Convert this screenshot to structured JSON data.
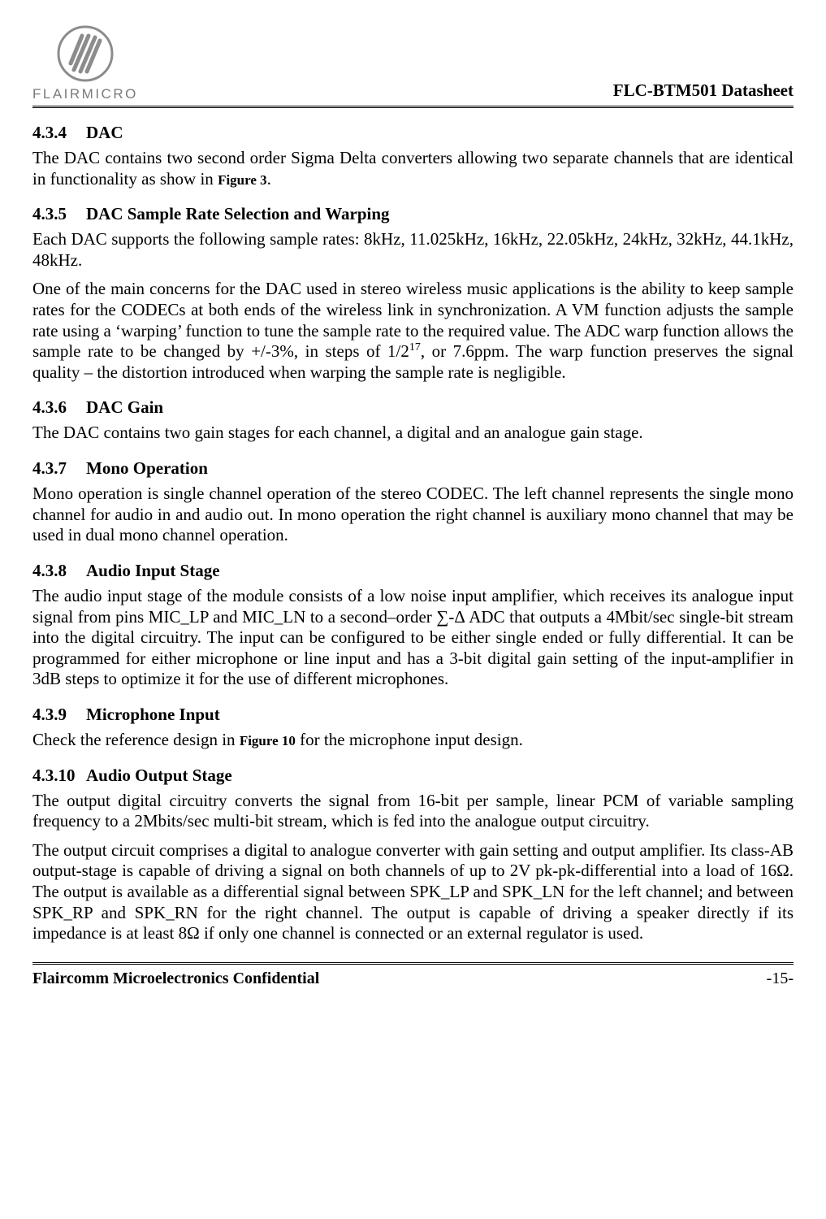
{
  "brand": {
    "name": "FLAIRMICRO",
    "logo_fill": "#8c8c8c",
    "logo_stroke": "#8c8c8c"
  },
  "doc_title": "FLC-BTM501 Datasheet",
  "sections": [
    {
      "num": "4.3.4",
      "title": "DAC",
      "paras": [
        {
          "pre": "The DAC contains two second order Sigma Delta converters allowing two separate channels that are identical in functionality as show in ",
          "fig": "Figure 3",
          "post": "."
        }
      ]
    },
    {
      "num": "4.3.5",
      "title": "DAC Sample Rate Selection and Warping",
      "paras": [
        {
          "text": "Each DAC supports the following sample rates: 8kHz, 11.025kHz, 16kHz, 22.05kHz, 24kHz, 32kHz, 44.1kHz, 48kHz."
        },
        {
          "pre": "One of the main concerns for the DAC used in stereo wireless music applications is the ability to keep sample rates for the CODECs at both ends of the wireless link in synchronization. A VM function adjusts the sample rate using a ‘warping’ function to tune the sample rate to the required value. The ADC warp function allows the sample rate to be changed by +/-3%, in steps of 1/2",
          "sup": "17",
          "post": ", or 7.6ppm. The warp function preserves the signal quality – the distortion introduced when warping the sample rate is negligible."
        }
      ]
    },
    {
      "num": "4.3.6",
      "title": "DAC Gain",
      "paras": [
        {
          "text": "The DAC contains two gain stages for each channel, a digital and an analogue gain stage."
        }
      ]
    },
    {
      "num": "4.3.7",
      "title": "Mono Operation",
      "paras": [
        {
          "text": "Mono operation is single channel operation of the stereo CODEC. The left channel represents the single mono channel for audio in and audio out. In mono operation the right channel is auxiliary mono channel that may be used in dual mono channel operation."
        }
      ]
    },
    {
      "num": "4.3.8",
      "title": "Audio Input Stage",
      "paras": [
        {
          "text": "The audio input stage of the module consists of a low noise input amplifier, which receives its analogue input signal from pins MIC_LP and MIC_LN to a second–order ∑-Δ ADC that outputs a 4Mbit/sec single-bit stream into the digital circuitry. The input can be configured to be either single ended or fully differential. It can be programmed for either microphone or line input and has a 3-bit digital gain setting of the input-amplifier in 3dB steps to optimize it for the use of different microphones."
        }
      ]
    },
    {
      "num": "4.3.9",
      "title": "Microphone Input",
      "paras": [
        {
          "pre": "Check the reference design in ",
          "fig": "Figure 10",
          "post": " for the microphone input design."
        }
      ]
    },
    {
      "num": "4.3.10",
      "title": "Audio Output Stage",
      "paras": [
        {
          "text": "The output digital circuitry converts the signal from 16-bit per sample, linear PCM of variable sampling frequency to a 2Mbits/sec multi-bit stream, which is fed into the analogue output circuitry."
        },
        {
          "text": "The output circuit comprises a digital to analogue converter with gain setting and output amplifier. Its class-AB output-stage is capable of driving a signal on both channels of up to 2V pk-pk-differential into a load of 16Ω. The output is available as a differential signal between SPK_LP and SPK_LN for the left channel; and between SPK_RP and SPK_RN for the right channel. The output is capable of driving a speaker directly if its impedance is at least 8Ω if only one channel is connected or an external regulator is used."
        }
      ]
    }
  ],
  "footer": {
    "left": "Flaircomm Microelectronics Confidential",
    "right": "-15-"
  },
  "typography": {
    "body_font": "Times New Roman",
    "body_size_pt": 16,
    "heading_weight": "bold"
  }
}
